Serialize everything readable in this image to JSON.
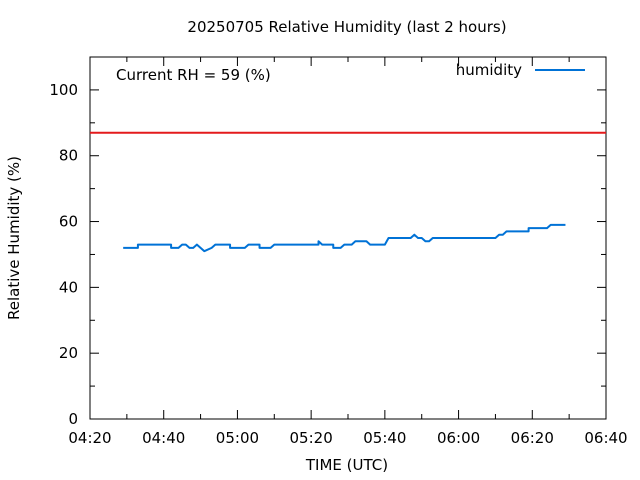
{
  "chart_data": {
    "type": "line",
    "title": "20250705 Relative Humidity (last 2 hours)",
    "xlabel": "TIME (UTC)",
    "ylabel": "Relative Humidity (%)",
    "annotation": "Current RH = 59 (%)",
    "xlim": [
      "04:20",
      "06:40"
    ],
    "ylim": [
      0,
      110
    ],
    "xticks": [
      "04:20",
      "04:40",
      "05:00",
      "05:20",
      "05:40",
      "06:00",
      "06:20",
      "06:40"
    ],
    "yticks": [
      0,
      20,
      40,
      60,
      80,
      100
    ],
    "grid": false,
    "legend_position": "top-right",
    "threshold": {
      "value": 87,
      "color": "#e41a1c"
    },
    "series": [
      {
        "name": "humidity",
        "color": "#0072d6",
        "points": [
          [
            "04:29",
            52
          ],
          [
            "04:33",
            52
          ],
          [
            "04:33",
            53
          ],
          [
            "04:42",
            53
          ],
          [
            "04:42",
            52
          ],
          [
            "04:44",
            52
          ],
          [
            "04:45",
            53
          ],
          [
            "04:46",
            53
          ],
          [
            "04:47",
            52
          ],
          [
            "04:48",
            52
          ],
          [
            "04:49",
            53
          ],
          [
            "04:51",
            51
          ],
          [
            "04:53",
            52
          ],
          [
            "04:54",
            53
          ],
          [
            "04:58",
            53
          ],
          [
            "04:58",
            52
          ],
          [
            "05:02",
            52
          ],
          [
            "05:03",
            53
          ],
          [
            "05:06",
            53
          ],
          [
            "05:06",
            52
          ],
          [
            "05:09",
            52
          ],
          [
            "05:10",
            53
          ],
          [
            "05:22",
            53
          ],
          [
            "05:22",
            54
          ],
          [
            "05:23",
            53
          ],
          [
            "05:26",
            53
          ],
          [
            "05:26",
            52
          ],
          [
            "05:28",
            52
          ],
          [
            "05:29",
            53
          ],
          [
            "05:31",
            53
          ],
          [
            "05:32",
            54
          ],
          [
            "05:35",
            54
          ],
          [
            "05:36",
            53
          ],
          [
            "05:40",
            53
          ],
          [
            "05:41",
            55
          ],
          [
            "05:47",
            55
          ],
          [
            "05:48",
            56
          ],
          [
            "05:49",
            55
          ],
          [
            "05:50",
            55
          ],
          [
            "05:51",
            54
          ],
          [
            "05:52",
            54
          ],
          [
            "05:53",
            55
          ],
          [
            "06:10",
            55
          ],
          [
            "06:11",
            56
          ],
          [
            "06:12",
            56
          ],
          [
            "06:13",
            57
          ],
          [
            "06:19",
            57
          ],
          [
            "06:19",
            58
          ],
          [
            "06:24",
            58
          ],
          [
            "06:25",
            59
          ],
          [
            "06:29",
            59
          ]
        ]
      }
    ]
  }
}
